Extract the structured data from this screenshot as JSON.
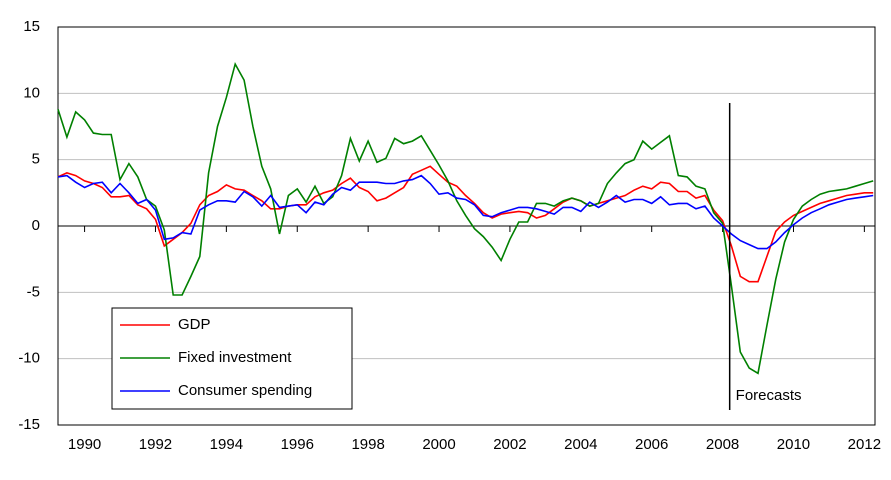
{
  "chart_data": {
    "type": "line",
    "x": [
      1989.25,
      1989.5,
      1989.75,
      1990,
      1990.25,
      1990.5,
      1990.75,
      1991,
      1991.25,
      1991.5,
      1991.75,
      1992,
      1992.25,
      1992.5,
      1992.75,
      1993,
      1993.25,
      1993.5,
      1993.75,
      1994,
      1994.25,
      1994.5,
      1994.75,
      1995,
      1995.25,
      1995.5,
      1995.75,
      1996,
      1996.25,
      1996.5,
      1996.75,
      1997,
      1997.25,
      1997.5,
      1997.75,
      1998,
      1998.25,
      1998.5,
      1998.75,
      1999,
      1999.25,
      1999.5,
      1999.75,
      2000,
      2000.25,
      2000.5,
      2000.75,
      2001,
      2001.25,
      2001.5,
      2001.75,
      2002,
      2002.25,
      2002.5,
      2002.75,
      2003,
      2003.25,
      2003.5,
      2003.75,
      2004,
      2004.25,
      2004.5,
      2004.75,
      2005,
      2005.25,
      2005.5,
      2005.75,
      2006,
      2006.25,
      2006.5,
      2006.75,
      2007,
      2007.25,
      2007.5,
      2007.75,
      2008,
      2008.25,
      2008.5,
      2008.75,
      2009,
      2009.25,
      2009.5,
      2009.75,
      2010,
      2010.25,
      2010.5,
      2010.75,
      2011,
      2011.25,
      2011.5,
      2011.75,
      2012,
      2012.25
    ],
    "series": [
      {
        "name": "GDP",
        "color": "#ff0000",
        "values": [
          3.7,
          4.0,
          3.8,
          3.4,
          3.2,
          2.9,
          2.2,
          2.2,
          2.3,
          1.6,
          1.3,
          0.5,
          -1.5,
          -1.0,
          -0.5,
          0.2,
          1.6,
          2.3,
          2.6,
          3.1,
          2.8,
          2.7,
          2.3,
          1.9,
          1.3,
          1.3,
          1.5,
          1.6,
          1.6,
          2.2,
          2.5,
          2.7,
          3.2,
          3.6,
          2.9,
          2.6,
          1.9,
          2.1,
          2.5,
          2.9,
          3.9,
          4.2,
          4.5,
          3.9,
          3.3,
          3.0,
          2.3,
          1.7,
          1.0,
          0.6,
          0.9,
          1.0,
          1.1,
          1.0,
          0.6,
          0.8,
          1.3,
          1.8,
          2.1,
          1.9,
          1.5,
          1.7,
          1.9,
          2.1,
          2.3,
          2.7,
          3.0,
          2.8,
          3.3,
          3.2,
          2.6,
          2.6,
          2.1,
          2.3,
          1.2,
          0.4,
          -1.5,
          -3.8,
          -4.2,
          -4.2,
          -2.3,
          -0.4,
          0.3,
          0.8,
          1.1,
          1.4,
          1.7,
          1.9,
          2.1,
          2.3,
          2.4,
          2.5,
          2.5
        ]
      },
      {
        "name": "Fixed investment",
        "color": "#008000",
        "values": [
          8.8,
          6.7,
          8.6,
          8.0,
          7.0,
          6.9,
          6.9,
          3.5,
          4.7,
          3.7,
          2.0,
          1.5,
          -0.3,
          -5.2,
          -5.2,
          -3.8,
          -2.3,
          4.0,
          7.5,
          9.7,
          12.2,
          11.0,
          7.5,
          4.5,
          2.8,
          -0.6,
          2.3,
          2.8,
          1.8,
          3.0,
          1.7,
          2.2,
          3.8,
          6.6,
          4.9,
          6.4,
          4.8,
          5.1,
          6.6,
          6.2,
          6.4,
          6.8,
          5.7,
          4.6,
          3.4,
          1.9,
          0.8,
          -0.2,
          -0.8,
          -1.6,
          -2.6,
          -1.0,
          0.3,
          0.3,
          1.7,
          1.7,
          1.5,
          1.9,
          2.1,
          1.9,
          1.5,
          1.7,
          3.2,
          4.0,
          4.7,
          5.0,
          6.4,
          5.8,
          6.3,
          6.8,
          3.8,
          3.7,
          3.0,
          2.8,
          1.0,
          0.2,
          -4.5,
          -9.5,
          -10.7,
          -11.1,
          -7.5,
          -4.0,
          -1.2,
          0.5,
          1.5,
          2.0,
          2.4,
          2.6,
          2.7,
          2.8,
          3.0,
          3.2,
          3.4
        ]
      },
      {
        "name": "Consumer spending",
        "color": "#0000ff",
        "values": [
          3.7,
          3.8,
          3.3,
          2.9,
          3.2,
          3.3,
          2.5,
          3.2,
          2.5,
          1.7,
          2.0,
          1.2,
          -1.0,
          -0.9,
          -0.5,
          -0.6,
          1.2,
          1.6,
          1.9,
          1.9,
          1.8,
          2.6,
          2.2,
          1.5,
          2.3,
          1.4,
          1.5,
          1.6,
          1.0,
          1.8,
          1.6,
          2.4,
          2.9,
          2.7,
          3.3,
          3.3,
          3.3,
          3.2,
          3.2,
          3.4,
          3.5,
          3.8,
          3.2,
          2.4,
          2.5,
          2.1,
          2.0,
          1.6,
          0.8,
          0.7,
          1.0,
          1.2,
          1.4,
          1.4,
          1.3,
          1.1,
          0.9,
          1.4,
          1.4,
          1.1,
          1.8,
          1.4,
          1.8,
          2.3,
          1.8,
          2.0,
          2.0,
          1.7,
          2.2,
          1.6,
          1.7,
          1.7,
          1.3,
          1.5,
          0.6,
          0.0,
          -0.6,
          -1.1,
          -1.4,
          -1.7,
          -1.7,
          -1.2,
          -0.5,
          0.1,
          0.6,
          1.0,
          1.3,
          1.6,
          1.8,
          2.0,
          2.1,
          2.2,
          2.3
        ]
      }
    ],
    "xlim": [
      1989.25,
      2012.3
    ],
    "xticks": [
      1990,
      1992,
      1994,
      1996,
      1998,
      2000,
      2002,
      2004,
      2006,
      2008,
      2010,
      2012
    ],
    "ylim": [
      -15,
      15
    ],
    "yticks": [
      -15,
      -10,
      -5,
      0,
      5,
      10,
      15
    ],
    "grid": true,
    "legend": "lower-left",
    "annotations": [
      {
        "text": "Forecasts",
        "x": 2008.2
      }
    ]
  }
}
